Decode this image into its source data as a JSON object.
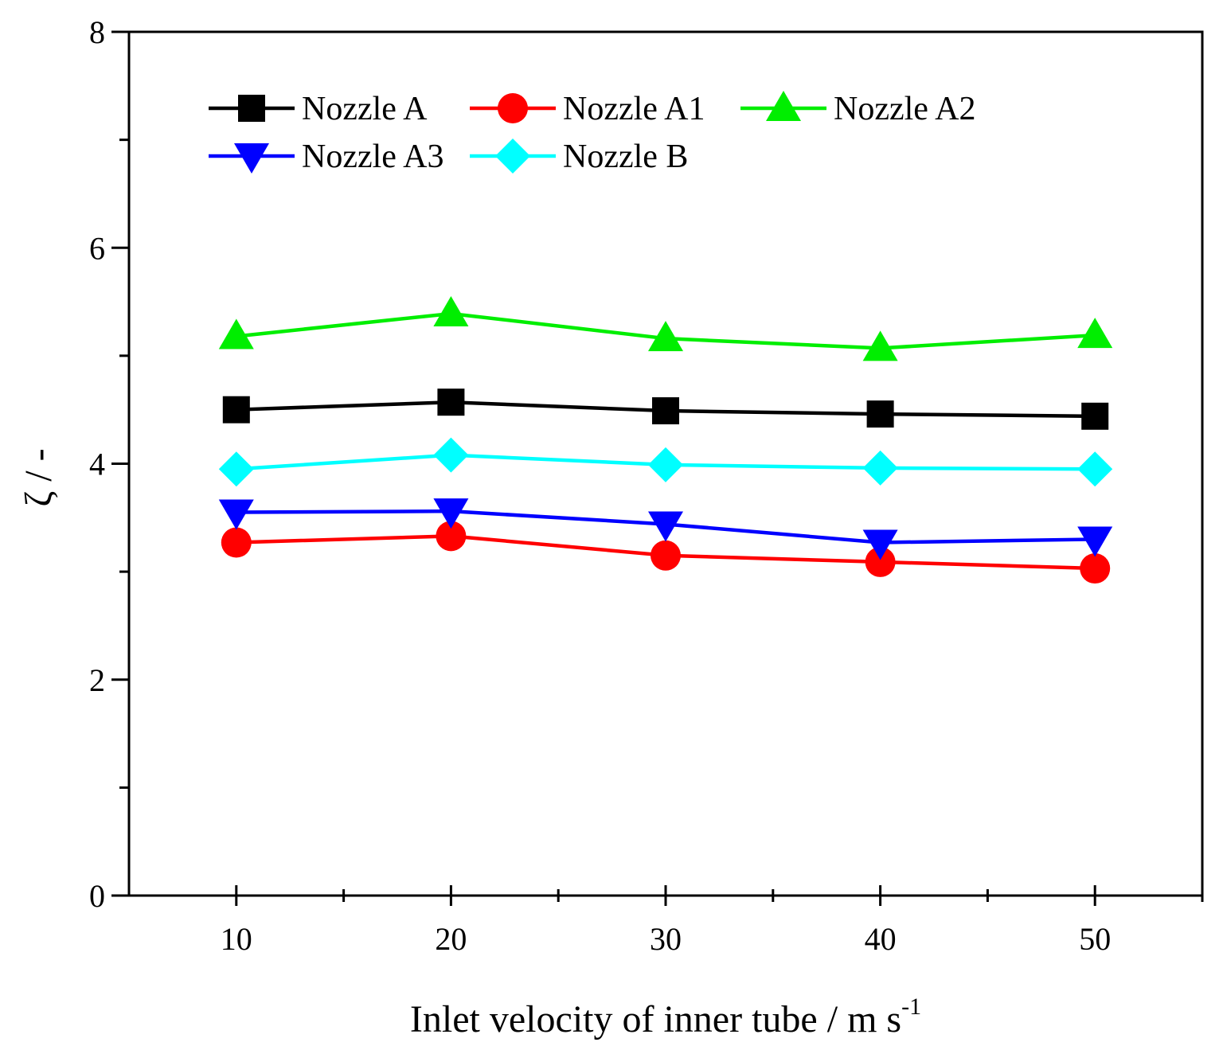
{
  "chart_data": {
    "type": "line",
    "title": "",
    "xlabel": "Inlet velocity of inner tube / m s",
    "xlabel_sup": "-1",
    "ylabel": "ζ / -",
    "xlim": [
      5,
      55
    ],
    "ylim": [
      0,
      8
    ],
    "x": [
      10,
      20,
      30,
      40,
      50
    ],
    "x_ticks": [
      10,
      20,
      30,
      40,
      50
    ],
    "x_minor_ticks": [
      15,
      25,
      35,
      45,
      55
    ],
    "y_ticks": [
      0,
      2,
      4,
      6,
      8
    ],
    "y_minor_ticks": [
      1,
      3,
      5,
      7
    ],
    "grid": false,
    "legend_position": "top-left",
    "series": [
      {
        "name": "Nozzle A",
        "color": "#000000",
        "marker": "square",
        "values": [
          4.5,
          4.57,
          4.49,
          4.46,
          4.44
        ]
      },
      {
        "name": "Nozzle A1",
        "color": "#ff0000",
        "marker": "circle",
        "values": [
          3.27,
          3.33,
          3.15,
          3.09,
          3.03
        ]
      },
      {
        "name": "Nozzle A2",
        "color": "#00ee00",
        "marker": "triangle-up",
        "values": [
          5.18,
          5.39,
          5.16,
          5.07,
          5.19
        ]
      },
      {
        "name": "Nozzle A3",
        "color": "#0000ff",
        "marker": "triangle-down",
        "values": [
          3.55,
          3.56,
          3.44,
          3.27,
          3.3
        ]
      },
      {
        "name": "Nozzle B",
        "color": "#00ffff",
        "marker": "diamond",
        "values": [
          3.95,
          4.08,
          3.99,
          3.96,
          3.95
        ]
      }
    ]
  }
}
